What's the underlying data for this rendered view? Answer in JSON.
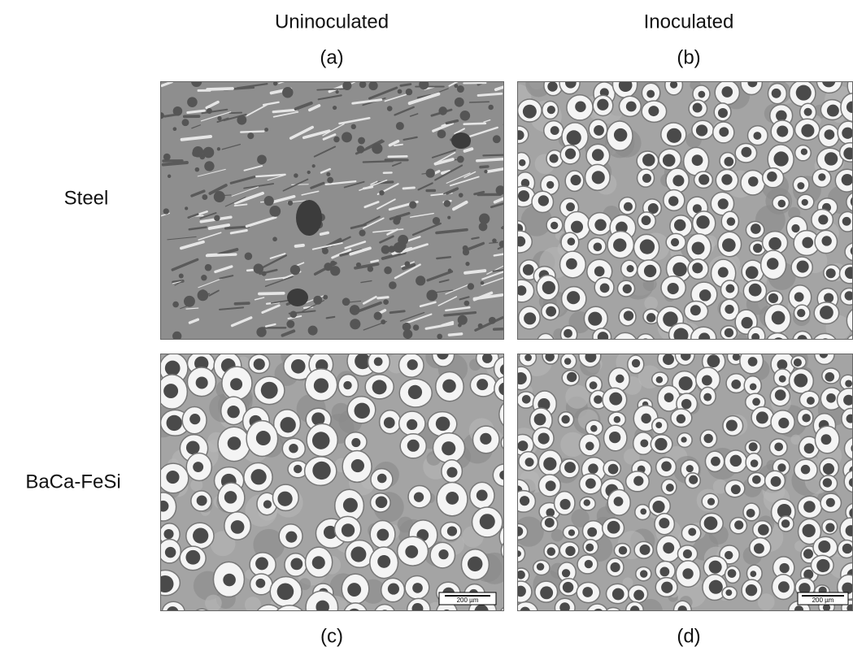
{
  "columns": [
    {
      "title": "Uninoculated"
    },
    {
      "title": "Inoculated"
    }
  ],
  "rows": [
    {
      "label": "Steel"
    },
    {
      "label": "BaCa-FeSi"
    }
  ],
  "panels": [
    {
      "label": "(a)"
    },
    {
      "label": "(b)"
    },
    {
      "label": "(c)",
      "scale_bar": "200 µm"
    },
    {
      "label": "(d)",
      "scale_bar": "200 µm"
    }
  ]
}
